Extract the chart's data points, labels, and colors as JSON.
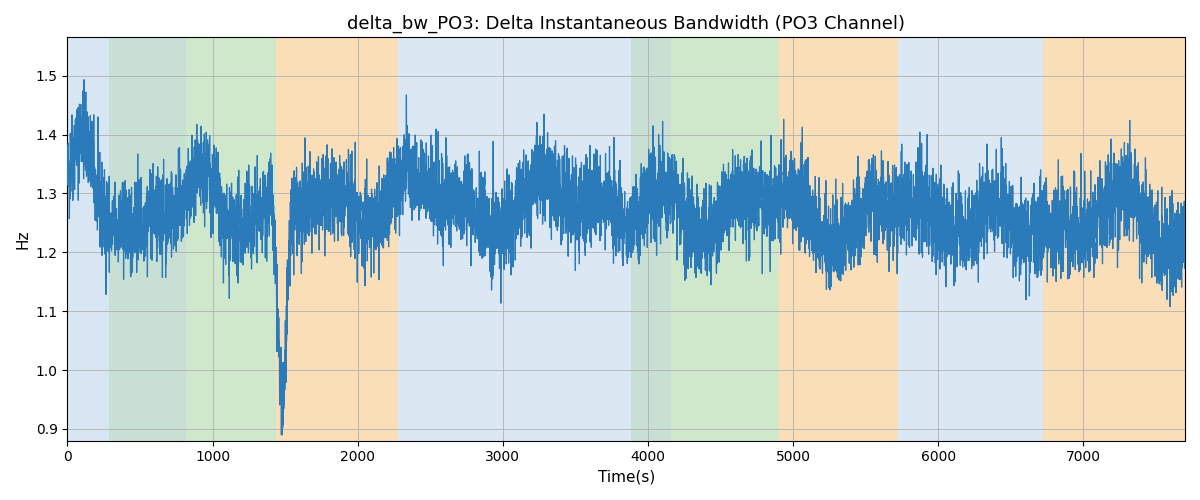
{
  "title": "delta_bw_PO3: Delta Instantaneous Bandwidth (PO3 Channel)",
  "xlabel": "Time(s)",
  "ylabel": "Hz",
  "xlim": [
    0,
    7700
  ],
  "ylim": [
    0.88,
    1.565
  ],
  "line_color": "#2b7bba",
  "line_width": 0.9,
  "background_color": "#ffffff",
  "grid_color": "#b0b0b0",
  "seed": 42,
  "n_points": 7600,
  "title_fontsize": 13,
  "label_fontsize": 11,
  "tick_fontsize": 10,
  "bands": [
    {
      "xmin": 0,
      "xmax": 290,
      "color": "#b8d0e8",
      "alpha": 0.55
    },
    {
      "xmin": 290,
      "xmax": 820,
      "color": "#a8d4a0",
      "alpha": 0.55
    },
    {
      "xmin": 290,
      "xmax": 820,
      "color": "#b8d0e8",
      "alpha": 0.3
    },
    {
      "xmin": 820,
      "xmax": 1440,
      "color": "#a8d4a0",
      "alpha": 0.55
    },
    {
      "xmin": 1440,
      "xmax": 2280,
      "color": "#f5c88a",
      "alpha": 0.6
    },
    {
      "xmin": 2280,
      "xmax": 3880,
      "color": "#b8d0e8",
      "alpha": 0.5
    },
    {
      "xmin": 3880,
      "xmax": 4160,
      "color": "#a8d4a0",
      "alpha": 0.55
    },
    {
      "xmin": 3880,
      "xmax": 4160,
      "color": "#b8d0e8",
      "alpha": 0.3
    },
    {
      "xmin": 4160,
      "xmax": 4900,
      "color": "#a8d4a0",
      "alpha": 0.55
    },
    {
      "xmin": 4900,
      "xmax": 5720,
      "color": "#f5c88a",
      "alpha": 0.6
    },
    {
      "xmin": 5720,
      "xmax": 6480,
      "color": "#b8d0e8",
      "alpha": 0.5
    },
    {
      "xmin": 6480,
      "xmax": 6720,
      "color": "#b8d0e8",
      "alpha": 0.5
    },
    {
      "xmin": 6720,
      "xmax": 7700,
      "color": "#f5c88a",
      "alpha": 0.6
    }
  ],
  "xticks": [
    0,
    1000,
    2000,
    3000,
    4000,
    5000,
    6000,
    7000
  ],
  "yticks": [
    0.9,
    1.0,
    1.1,
    1.2,
    1.3,
    1.4,
    1.5
  ]
}
